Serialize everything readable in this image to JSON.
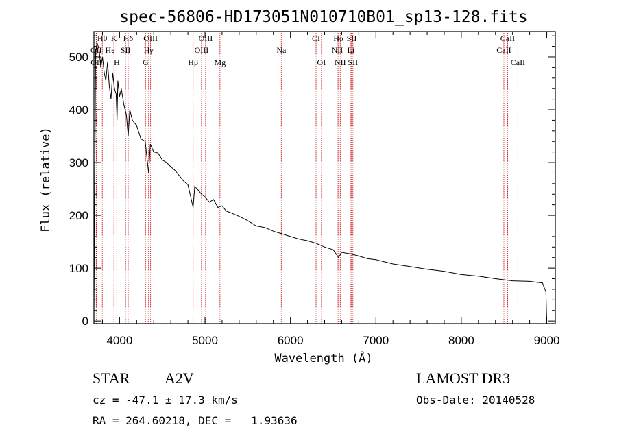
{
  "chart_data": {
    "type": "line",
    "title": "spec-56806-HD173051N010710B01_sp13-128.fits",
    "xlabel": "Wavelength (Å)",
    "ylabel": "Flux (relative)",
    "xlim": [
      3700,
      9100
    ],
    "ylim": [
      -5,
      548
    ],
    "xticks": [
      4000,
      5000,
      6000,
      7000,
      8000,
      9000
    ],
    "yticks": [
      0,
      100,
      200,
      300,
      400,
      500
    ],
    "spectrum": {
      "name": "flux",
      "x": [
        3700,
        3720,
        3740,
        3760,
        3780,
        3800,
        3820,
        3840,
        3860,
        3880,
        3900,
        3920,
        3940,
        3960,
        3970,
        3980,
        4000,
        4020,
        4050,
        4080,
        4101,
        4120,
        4150,
        4200,
        4250,
        4300,
        4340,
        4360,
        4400,
        4450,
        4500,
        4550,
        4600,
        4650,
        4700,
        4750,
        4800,
        4861,
        4880,
        4920,
        4960,
        5000,
        5050,
        5100,
        5150,
        5200,
        5250,
        5300,
        5400,
        5500,
        5600,
        5700,
        5800,
        5900,
        6000,
        6100,
        6200,
        6300,
        6400,
        6500,
        6563,
        6600,
        6700,
        6800,
        6900,
        7000,
        7200,
        7400,
        7600,
        7800,
        8000,
        8200,
        8400,
        8600,
        8800,
        8950,
        8990,
        9000
      ],
      "y": [
        20,
        510,
        525,
        515,
        480,
        500,
        470,
        455,
        490,
        445,
        420,
        470,
        440,
        430,
        380,
        455,
        425,
        440,
        410,
        390,
        350,
        400,
        380,
        370,
        345,
        340,
        280,
        335,
        320,
        318,
        305,
        300,
        292,
        285,
        275,
        265,
        258,
        215,
        255,
        248,
        240,
        235,
        225,
        230,
        215,
        218,
        208,
        205,
        198,
        190,
        180,
        177,
        170,
        165,
        160,
        155,
        152,
        147,
        140,
        135,
        120,
        130,
        127,
        123,
        118,
        116,
        108,
        103,
        98,
        94,
        88,
        85,
        80,
        76,
        75,
        72,
        55,
        0
      ]
    },
    "emission_lines": [
      {
        "label": "Hθ",
        "x": 3798,
        "row": 0
      },
      {
        "label": "K",
        "x": 3934,
        "row": 0
      },
      {
        "label": "Hδ",
        "x": 4101,
        "row": 0
      },
      {
        "label": "OIII",
        "x": 4363,
        "row": 0
      },
      {
        "label": "OIII",
        "x": 5007,
        "row": 0
      },
      {
        "label": "CI",
        "x": 6300,
        "row": 0
      },
      {
        "label": "Hα",
        "x": 6563,
        "row": 0
      },
      {
        "label": "SII",
        "x": 6717,
        "row": 0
      },
      {
        "label": "CaII",
        "x": 8542,
        "row": 0
      },
      {
        "label": "OII",
        "x": 3727,
        "row": 1
      },
      {
        "label": "He",
        "x": 3889,
        "row": 1
      },
      {
        "label": "SII",
        "x": 4070,
        "row": 1
      },
      {
        "label": "Hγ",
        "x": 4340,
        "row": 1
      },
      {
        "label": "OIII",
        "x": 4959,
        "row": 1
      },
      {
        "label": "Na",
        "x": 5893,
        "row": 1
      },
      {
        "label": "NII",
        "x": 6548,
        "row": 1
      },
      {
        "label": "Li",
        "x": 6708,
        "row": 1
      },
      {
        "label": "CaII",
        "x": 8498,
        "row": 1
      },
      {
        "label": "OII",
        "x": 3729,
        "row": 2
      },
      {
        "label": "H",
        "x": 3968,
        "row": 2
      },
      {
        "label": "G",
        "x": 4304,
        "row": 2
      },
      {
        "label": "Hβ",
        "x": 4861,
        "row": 2
      },
      {
        "label": "Mg",
        "x": 5175,
        "row": 2
      },
      {
        "label": "OI",
        "x": 6363,
        "row": 2
      },
      {
        "label": "NII",
        "x": 6583,
        "row": 2
      },
      {
        "label": "SII",
        "x": 6731,
        "row": 2
      },
      {
        "label": "CaII",
        "x": 8662,
        "row": 2
      }
    ]
  },
  "info": {
    "object_class": "STAR",
    "subclass": "A2V",
    "survey": "LAMOST DR3",
    "cz": "cz = -47.1 ± 17.3 km/s",
    "obs_date": "Obs-Date: 20140528",
    "radec": "RA = 264.60218, DEC =   1.93636"
  }
}
